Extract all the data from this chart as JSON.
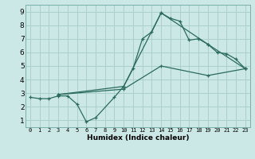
{
  "xlabel": "Humidex (Indice chaleur)",
  "background_color": "#cce8e6",
  "grid_color": "#aacfcc",
  "line_color": "#2a6b5e",
  "xlim": [
    -0.5,
    23.5
  ],
  "ylim": [
    0.5,
    9.5
  ],
  "xticks": [
    0,
    1,
    2,
    3,
    4,
    5,
    6,
    7,
    8,
    9,
    10,
    11,
    12,
    13,
    14,
    15,
    16,
    17,
    18,
    19,
    20,
    21,
    22,
    23
  ],
  "yticks": [
    1,
    2,
    3,
    4,
    5,
    6,
    7,
    8,
    9
  ],
  "line1_x": [
    0,
    1,
    2,
    3,
    4,
    5,
    6,
    7,
    9,
    10,
    11,
    12,
    13,
    14,
    15,
    16,
    17,
    18,
    19,
    20,
    21,
    22,
    23
  ],
  "line1_y": [
    2.7,
    2.6,
    2.6,
    2.8,
    2.8,
    2.2,
    0.9,
    1.2,
    2.7,
    3.5,
    4.8,
    7.0,
    7.5,
    8.9,
    8.5,
    8.3,
    6.9,
    7.0,
    6.6,
    6.0,
    5.9,
    5.5,
    4.8
  ],
  "line2_x": [
    3,
    10,
    14,
    19,
    23
  ],
  "line2_y": [
    2.9,
    3.5,
    8.9,
    6.6,
    4.8
  ],
  "line3_x": [
    3,
    10,
    14,
    19,
    23
  ],
  "line3_y": [
    2.9,
    3.3,
    5.0,
    4.3,
    4.8
  ],
  "xlabel_fontsize": 6.5,
  "xlabel_fontweight": "bold",
  "tick_fontsize_x": 5.0,
  "tick_fontsize_y": 6.5,
  "linewidth": 0.9,
  "markersize": 3.5,
  "markeredgewidth": 0.9
}
